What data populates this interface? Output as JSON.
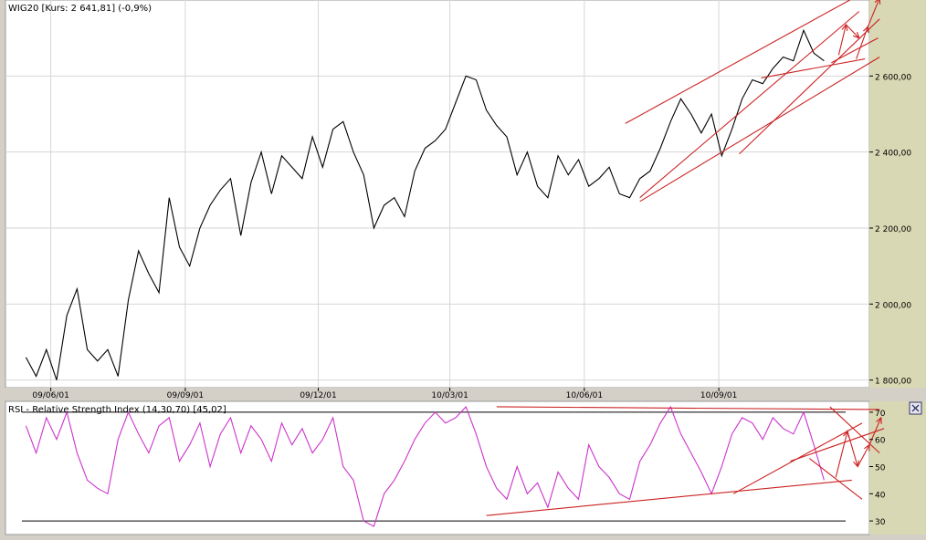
{
  "colors": {
    "window_bg": "#d4d0c8",
    "plot_bg": "#ffffff",
    "axis_bg": "#d8d8b4",
    "grid": "#d6d6d6",
    "price_line": "#000000",
    "rsi_line": "#cc33cc",
    "trend": "#cc2222",
    "frame": "#000000"
  },
  "close_icon": "close-icon",
  "chart_data": [
    {
      "type": "line",
      "title": "WIG20 [Kurs: 2 641,81] (-0,9%)",
      "series": [
        {
          "name": "WIG20",
          "x": [
            "2009-05-15",
            "2009-05-22",
            "2009-05-29",
            "2009-06-05",
            "2009-06-12",
            "2009-06-19",
            "2009-06-26",
            "2009-07-03",
            "2009-07-10",
            "2009-07-17",
            "2009-07-24",
            "2009-07-31",
            "2009-08-07",
            "2009-08-14",
            "2009-08-21",
            "2009-08-28",
            "2009-09-04",
            "2009-09-11",
            "2009-09-18",
            "2009-09-25",
            "2009-10-02",
            "2009-10-09",
            "2009-10-16",
            "2009-10-23",
            "2009-10-30",
            "2009-11-06",
            "2009-11-13",
            "2009-11-20",
            "2009-11-27",
            "2009-12-04",
            "2009-12-11",
            "2009-12-18",
            "2009-12-25",
            "2010-01-01",
            "2010-01-08",
            "2010-01-15",
            "2010-01-22",
            "2010-01-29",
            "2010-02-05",
            "2010-02-12",
            "2010-02-19",
            "2010-02-26",
            "2010-03-05",
            "2010-03-12",
            "2010-03-19",
            "2010-03-26",
            "2010-04-02",
            "2010-04-09",
            "2010-04-16",
            "2010-04-23",
            "2010-04-30",
            "2010-05-07",
            "2010-05-14",
            "2010-05-21",
            "2010-05-28",
            "2010-06-04",
            "2010-06-11",
            "2010-06-18",
            "2010-06-25",
            "2010-07-02",
            "2010-07-09",
            "2010-07-16",
            "2010-07-23",
            "2010-07-30",
            "2010-08-06",
            "2010-08-13",
            "2010-08-20",
            "2010-08-27",
            "2010-09-03",
            "2010-09-10",
            "2010-09-17",
            "2010-09-24",
            "2010-10-01",
            "2010-10-08",
            "2010-10-15",
            "2010-10-22",
            "2010-10-29",
            "2010-11-05",
            "2010-11-12"
          ],
          "y": [
            1860,
            1810,
            1880,
            1800,
            1970,
            2040,
            1880,
            1850,
            1880,
            1810,
            2010,
            2140,
            2080,
            2030,
            2280,
            2150,
            2100,
            2200,
            2260,
            2300,
            2330,
            2180,
            2320,
            2400,
            2290,
            2390,
            2360,
            2330,
            2440,
            2360,
            2460,
            2480,
            2400,
            2340,
            2200,
            2260,
            2280,
            2230,
            2350,
            2410,
            2430,
            2460,
            2530,
            2600,
            2590,
            2510,
            2470,
            2440,
            2340,
            2400,
            2310,
            2280,
            2390,
            2340,
            2380,
            2310,
            2330,
            2360,
            2290,
            2280,
            2330,
            2350,
            2410,
            2480,
            2540,
            2500,
            2450,
            2500,
            2390,
            2460,
            2540,
            2590,
            2580,
            2620,
            2650,
            2640,
            2720,
            2660,
            2640
          ]
        }
      ],
      "x_ticks": [
        "09/06/01",
        "09/09/01",
        "09/12/01",
        "10/03/01",
        "10/06/01",
        "10/09/01"
      ],
      "y_ticks": [
        "1 800,00",
        "2 000,00",
        "2 200,00",
        "2 400,00",
        "2 600,00"
      ],
      "y_tick_values": [
        1800,
        2000,
        2200,
        2400,
        2600
      ],
      "ylim": [
        1780,
        2800
      ],
      "xlim": [
        "2009-05-01",
        "2010-12-13"
      ],
      "grid": true,
      "trendlines": [
        {
          "x": [
            "2010-07-09",
            "2010-12-06"
          ],
          "y": [
            2280,
            2770
          ]
        },
        {
          "x": [
            "2010-06-29",
            "2010-12-02"
          ],
          "y": [
            2475,
            2805
          ]
        },
        {
          "x": [
            "2010-07-09",
            "2010-12-20"
          ],
          "y": [
            2270,
            2650
          ]
        },
        {
          "x": [
            "2010-09-15",
            "2010-12-20"
          ],
          "y": [
            2395,
            2750
          ]
        },
        {
          "x": [
            "2010-09-30",
            "2010-12-10"
          ],
          "y": [
            2595,
            2645
          ]
        },
        {
          "x": [
            "2010-11-17",
            "2010-12-19"
          ],
          "y": [
            2635,
            2700
          ]
        }
      ],
      "projection_arrows": [
        {
          "x": [
            "2010-11-22",
            "2010-11-27",
            "2010-12-06"
          ],
          "y": [
            2655,
            2735,
            2700
          ]
        },
        {
          "x": [
            "2010-12-04",
            "2010-12-12",
            "2010-12-20"
          ],
          "y": [
            2645,
            2730,
            2805
          ]
        }
      ]
    },
    {
      "type": "line",
      "title": "RSI - Relative Strength Index (14,30,70) [45,02]",
      "series": [
        {
          "name": "RSI",
          "x": [
            "2009-05-15",
            "2009-05-22",
            "2009-05-29",
            "2009-06-05",
            "2009-06-12",
            "2009-06-19",
            "2009-06-26",
            "2009-07-03",
            "2009-07-10",
            "2009-07-17",
            "2009-07-24",
            "2009-07-31",
            "2009-08-07",
            "2009-08-14",
            "2009-08-21",
            "2009-08-28",
            "2009-09-04",
            "2009-09-11",
            "2009-09-18",
            "2009-09-25",
            "2009-10-02",
            "2009-10-09",
            "2009-10-16",
            "2009-10-23",
            "2009-10-30",
            "2009-11-06",
            "2009-11-13",
            "2009-11-20",
            "2009-11-27",
            "2009-12-04",
            "2009-12-11",
            "2009-12-18",
            "2009-12-25",
            "2010-01-01",
            "2010-01-08",
            "2010-01-15",
            "2010-01-22",
            "2010-01-29",
            "2010-02-05",
            "2010-02-12",
            "2010-02-19",
            "2010-02-26",
            "2010-03-05",
            "2010-03-12",
            "2010-03-19",
            "2010-03-26",
            "2010-04-02",
            "2010-04-09",
            "2010-04-16",
            "2010-04-23",
            "2010-04-30",
            "2010-05-07",
            "2010-05-14",
            "2010-05-21",
            "2010-05-28",
            "2010-06-04",
            "2010-06-11",
            "2010-06-18",
            "2010-06-25",
            "2010-07-02",
            "2010-07-09",
            "2010-07-16",
            "2010-07-23",
            "2010-07-30",
            "2010-08-06",
            "2010-08-13",
            "2010-08-20",
            "2010-08-27",
            "2010-09-03",
            "2010-09-10",
            "2010-09-17",
            "2010-09-24",
            "2010-10-01",
            "2010-10-08",
            "2010-10-15",
            "2010-10-22",
            "2010-10-29",
            "2010-11-05",
            "2010-11-12"
          ],
          "y": [
            65,
            55,
            68,
            60,
            70,
            55,
            45,
            42,
            40,
            60,
            70,
            62,
            55,
            65,
            68,
            52,
            58,
            66,
            50,
            62,
            68,
            55,
            65,
            60,
            52,
            66,
            58,
            64,
            55,
            60,
            68,
            50,
            45,
            30,
            28,
            40,
            45,
            52,
            60,
            66,
            70,
            66,
            68,
            72,
            62,
            50,
            42,
            38,
            50,
            40,
            44,
            35,
            48,
            42,
            38,
            58,
            50,
            46,
            40,
            38,
            52,
            58,
            66,
            72,
            62,
            55,
            48,
            40,
            50,
            62,
            68,
            66,
            60,
            68,
            64,
            62,
            70,
            58,
            45
          ]
        }
      ],
      "x_ticks": [
        "09/06/01",
        "09/09/01",
        "09/12/01",
        "10/03/01",
        "10/06/01",
        "10/09/01"
      ],
      "y_ticks": [
        "30",
        "40",
        "50",
        "60",
        "70"
      ],
      "y_tick_values": [
        30,
        40,
        50,
        60,
        70
      ],
      "ylim": [
        25,
        74
      ],
      "reference_levels": [
        30,
        70
      ],
      "trendlines": [
        {
          "x": [
            "2010-04-02",
            "2010-12-20"
          ],
          "y": [
            72,
            71
          ]
        },
        {
          "x": [
            "2010-03-26",
            "2010-12-01"
          ],
          "y": [
            32,
            45
          ]
        },
        {
          "x": [
            "2010-09-11",
            "2010-12-08"
          ],
          "y": [
            40,
            66
          ]
        },
        {
          "x": [
            "2010-10-20",
            "2010-12-23"
          ],
          "y": [
            52,
            64
          ]
        },
        {
          "x": [
            "2010-11-02",
            "2010-12-08"
          ],
          "y": [
            53,
            38
          ]
        },
        {
          "x": [
            "2010-11-16",
            "2010-12-20"
          ],
          "y": [
            72,
            55
          ]
        }
      ],
      "projection_arrows": [
        {
          "x": [
            "2010-11-20",
            "2010-11-28",
            "2010-12-05"
          ],
          "y": [
            46,
            63,
            50
          ]
        },
        {
          "x": [
            "2010-12-05",
            "2010-12-13",
            "2010-12-21"
          ],
          "y": [
            50,
            58,
            68
          ]
        }
      ]
    }
  ]
}
